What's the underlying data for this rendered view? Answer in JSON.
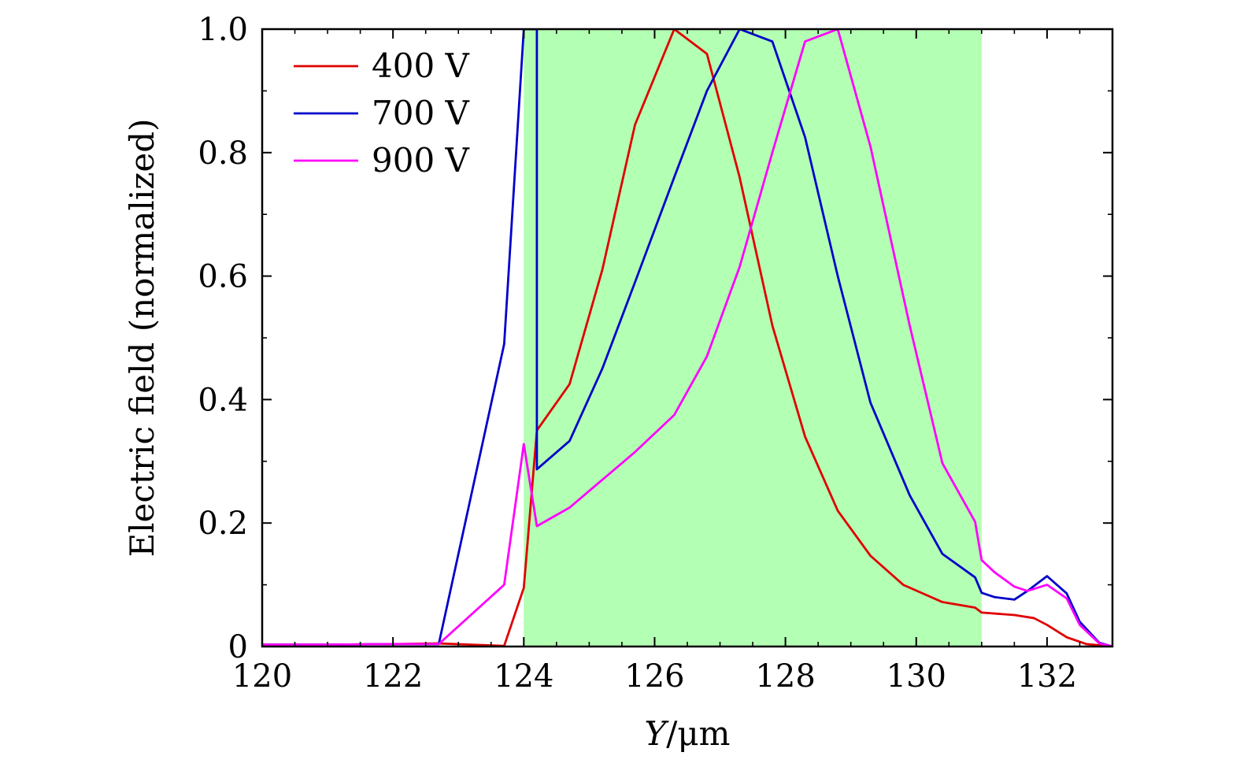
{
  "chart_data": {
    "type": "line",
    "title": "",
    "xlabel": {
      "var": "Y",
      "unit": "/μm"
    },
    "ylabel": "Electric field (normalized)",
    "xlim": [
      120,
      133
    ],
    "ylim": [
      0,
      1.0
    ],
    "x_ticks": [
      {
        "value": 120,
        "label": "120"
      },
      {
        "value": 122,
        "label": "122"
      },
      {
        "value": 124,
        "label": "124"
      },
      {
        "value": 126,
        "label": "126"
      },
      {
        "value": 128,
        "label": "128"
      },
      {
        "value": 130,
        "label": "130"
      },
      {
        "value": 132,
        "label": "132"
      }
    ],
    "y_ticks": [
      {
        "value": 0,
        "label": "0"
      },
      {
        "value": 0.2,
        "label": "0.2"
      },
      {
        "value": 0.4,
        "label": "0.4"
      },
      {
        "value": 0.6,
        "label": "0.6"
      },
      {
        "value": 0.8,
        "label": "0.8"
      },
      {
        "value": 1.0,
        "label": "1.0"
      }
    ],
    "shaded_region": {
      "x0": 124,
      "x1": 131,
      "color": "#b3ffb3"
    },
    "legend": {
      "position": "top-left"
    },
    "series": [
      {
        "name": "400 V",
        "color": "#e00000",
        "points": [
          [
            120,
            0.003
          ],
          [
            121,
            0.003
          ],
          [
            122,
            0.004
          ],
          [
            122.7,
            0.005
          ],
          [
            123.2,
            0.003
          ],
          [
            123.7,
            0.001
          ],
          [
            124.0,
            0.095
          ],
          [
            124.2,
            0.35
          ],
          [
            124.7,
            0.425
          ],
          [
            125.2,
            0.61
          ],
          [
            125.7,
            0.845
          ],
          [
            126.3,
            1.0
          ],
          [
            126.8,
            0.96
          ],
          [
            127.3,
            0.76
          ],
          [
            127.8,
            0.52
          ],
          [
            128.3,
            0.34
          ],
          [
            128.8,
            0.22
          ],
          [
            129.3,
            0.147
          ],
          [
            129.8,
            0.1
          ],
          [
            130.4,
            0.072
          ],
          [
            130.9,
            0.063
          ],
          [
            131.0,
            0.055
          ],
          [
            131.5,
            0.051
          ],
          [
            131.8,
            0.046
          ],
          [
            132.0,
            0.035
          ],
          [
            132.3,
            0.015
          ],
          [
            132.6,
            0.004
          ],
          [
            133,
            0.0
          ]
        ]
      },
      {
        "name": "700 V",
        "color": "#0000cc",
        "points": [
          [
            120,
            0.003
          ],
          [
            121,
            0.003
          ],
          [
            122,
            0.004
          ],
          [
            122.7,
            0.004
          ],
          [
            123.7,
            0.49
          ],
          [
            124.0,
            1.0
          ],
          [
            124.2,
            1.0
          ],
          [
            124.2,
            0.287
          ],
          [
            124.7,
            0.333
          ],
          [
            125.2,
            0.45
          ],
          [
            125.7,
            0.59
          ],
          [
            126.3,
            0.76
          ],
          [
            126.8,
            0.9
          ],
          [
            127.3,
            1.0
          ],
          [
            127.8,
            0.98
          ],
          [
            128.3,
            0.825
          ],
          [
            128.8,
            0.6
          ],
          [
            129.3,
            0.395
          ],
          [
            129.9,
            0.245
          ],
          [
            130.4,
            0.15
          ],
          [
            130.9,
            0.112
          ],
          [
            131.0,
            0.087
          ],
          [
            131.2,
            0.08
          ],
          [
            131.5,
            0.076
          ],
          [
            131.7,
            0.09
          ],
          [
            132.0,
            0.114
          ],
          [
            132.3,
            0.086
          ],
          [
            132.5,
            0.04
          ],
          [
            132.8,
            0.006
          ],
          [
            133,
            0.0
          ]
        ]
      },
      {
        "name": "900 V",
        "color": "#ff00ff",
        "points": [
          [
            120,
            0.003
          ],
          [
            121,
            0.003
          ],
          [
            122,
            0.004
          ],
          [
            122.7,
            0.004
          ],
          [
            123.7,
            0.1
          ],
          [
            124.0,
            0.328
          ],
          [
            124.2,
            0.195
          ],
          [
            124.7,
            0.225
          ],
          [
            125.2,
            0.27
          ],
          [
            125.7,
            0.315
          ],
          [
            126.3,
            0.375
          ],
          [
            126.8,
            0.47
          ],
          [
            127.3,
            0.615
          ],
          [
            127.8,
            0.8
          ],
          [
            128.3,
            0.98
          ],
          [
            128.8,
            1.0
          ],
          [
            129.3,
            0.81
          ],
          [
            129.9,
            0.52
          ],
          [
            130.4,
            0.297
          ],
          [
            130.9,
            0.202
          ],
          [
            131.0,
            0.14
          ],
          [
            131.2,
            0.12
          ],
          [
            131.5,
            0.097
          ],
          [
            131.7,
            0.09
          ],
          [
            132.0,
            0.1
          ],
          [
            132.3,
            0.078
          ],
          [
            132.5,
            0.035
          ],
          [
            132.8,
            0.005
          ],
          [
            133,
            0.0
          ]
        ]
      }
    ]
  }
}
